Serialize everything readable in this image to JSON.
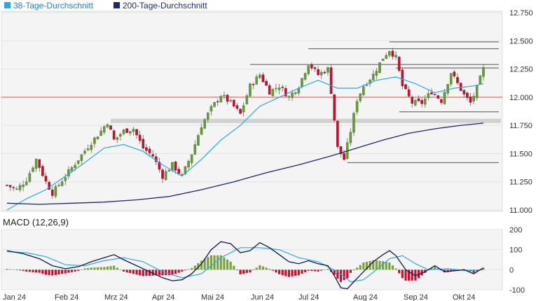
{
  "legend": {
    "sma38_label": "38-Tage-Durchschnitt",
    "sma200_label": "200-Tage-Durchschnitt"
  },
  "macd_title": "MACD (12,26,9)",
  "colors": {
    "sma38": "#29a9e0",
    "sma200": "#1a2a6c",
    "up": "#6a9a3a",
    "down": "#c8102e",
    "ref": "#d9534f",
    "level": "#555555",
    "macd_line": "#0d1b4c",
    "signal_line": "#29a9e0",
    "hist_pos": "#7aa33f",
    "hist_neg": "#c8102e"
  },
  "chart_data": [
    {
      "type": "candlestick",
      "title": "",
      "x_axis_labels": [
        "Jan 24",
        "Feb 24",
        "Mrz 24",
        "Apr 24",
        "Mai 24",
        "Jun 24",
        "Jul 24",
        "Aug 24",
        "Sep 24",
        "Okt 24"
      ],
      "y_ticks": [
        "12.750",
        "12.500",
        "12.250",
        "12.000",
        "11.750",
        "11.500",
        "11.250",
        "11.000"
      ],
      "ylim": [
        11.0,
        12.75
      ],
      "reference_line": 12.0,
      "support_resistance": [
        {
          "level": 12.49,
          "from": "Aug 24",
          "to": "Okt 24"
        },
        {
          "level": 12.43,
          "from": "Jul 24",
          "to": "Okt 24"
        },
        {
          "level": 12.29,
          "from": "Jun 24",
          "to": "Okt 24"
        },
        {
          "level": 12.26,
          "from": "Sep 24",
          "to": "Okt 24"
        },
        {
          "level": 11.87,
          "from": "Sep 24",
          "to": "Okt 24"
        },
        {
          "level": 11.79,
          "from": "Mrz 24",
          "to": "Okt 24",
          "band": true
        },
        {
          "level": 11.42,
          "from": "Aug 24",
          "to": "Okt 24"
        }
      ],
      "close_path": [
        [
          0,
          11.22
        ],
        [
          3,
          11.18
        ],
        [
          6,
          11.27
        ],
        [
          9,
          11.45
        ],
        [
          12,
          11.25
        ],
        [
          14,
          11.15
        ],
        [
          18,
          11.3
        ],
        [
          22,
          11.45
        ],
        [
          26,
          11.6
        ],
        [
          29,
          11.7
        ],
        [
          31,
          11.78
        ],
        [
          33,
          11.62
        ],
        [
          36,
          11.7
        ],
        [
          39,
          11.72
        ],
        [
          42,
          11.55
        ],
        [
          45,
          11.48
        ],
        [
          48,
          11.3
        ],
        [
          51,
          11.4
        ],
        [
          54,
          11.3
        ],
        [
          57,
          11.5
        ],
        [
          60,
          11.75
        ],
        [
          63,
          11.9
        ],
        [
          66,
          12.02
        ],
        [
          69,
          11.95
        ],
        [
          72,
          11.85
        ],
        [
          75,
          12.1
        ],
        [
          78,
          12.2
        ],
        [
          81,
          12.05
        ],
        [
          84,
          12.1
        ],
        [
          87,
          12.0
        ],
        [
          90,
          12.1
        ],
        [
          93,
          12.3
        ],
        [
          96,
          12.2
        ],
        [
          99,
          12.25
        ],
        [
          100,
          12.05
        ],
        [
          102,
          11.55
        ],
        [
          104,
          11.45
        ],
        [
          106,
          11.7
        ],
        [
          108,
          11.98
        ],
        [
          110,
          12.1
        ],
        [
          113,
          12.2
        ],
        [
          116,
          12.35
        ],
        [
          118,
          12.42
        ],
        [
          120,
          12.35
        ],
        [
          122,
          12.1
        ],
        [
          125,
          11.95
        ],
        [
          128,
          11.95
        ],
        [
          131,
          12.05
        ],
        [
          134,
          11.97
        ],
        [
          137,
          12.22
        ],
        [
          139,
          12.12
        ],
        [
          141,
          12.02
        ],
        [
          143,
          11.95
        ],
        [
          145,
          12.08
        ],
        [
          147,
          12.25
        ]
      ],
      "sma38_path": [
        [
          0,
          11.0
        ],
        [
          6,
          11.1
        ],
        [
          12,
          11.18
        ],
        [
          18,
          11.3
        ],
        [
          24,
          11.42
        ],
        [
          30,
          11.55
        ],
        [
          36,
          11.58
        ],
        [
          42,
          11.52
        ],
        [
          48,
          11.4
        ],
        [
          54,
          11.3
        ],
        [
          60,
          11.45
        ],
        [
          66,
          11.62
        ],
        [
          72,
          11.75
        ],
        [
          78,
          11.92
        ],
        [
          84,
          12.0
        ],
        [
          90,
          12.08
        ],
        [
          96,
          12.15
        ],
        [
          102,
          12.08
        ],
        [
          108,
          12.08
        ],
        [
          114,
          12.15
        ],
        [
          120,
          12.18
        ],
        [
          126,
          12.12
        ],
        [
          132,
          12.04
        ],
        [
          138,
          12.08
        ],
        [
          144,
          12.1
        ],
        [
          147,
          12.12
        ]
      ],
      "sma200_path": [
        [
          0,
          11.06
        ],
        [
          10,
          11.05
        ],
        [
          20,
          11.06
        ],
        [
          30,
          11.07
        ],
        [
          40,
          11.09
        ],
        [
          50,
          11.12
        ],
        [
          60,
          11.18
        ],
        [
          70,
          11.25
        ],
        [
          80,
          11.33
        ],
        [
          90,
          11.4
        ],
        [
          100,
          11.48
        ],
        [
          108,
          11.55
        ],
        [
          116,
          11.62
        ],
        [
          124,
          11.68
        ],
        [
          132,
          11.72
        ],
        [
          140,
          11.75
        ],
        [
          147,
          11.77
        ]
      ]
    },
    {
      "type": "macd",
      "title": "MACD (12,26,9)",
      "x_axis_labels": [
        "Jan 24",
        "Feb 24",
        "Mrz 24",
        "Apr 24",
        "Mai 24",
        "Jun 24",
        "Jul 24",
        "Aug 24",
        "Sep 24",
        "Okt 24"
      ],
      "y_ticks": [
        "200",
        "100",
        "0",
        "-100"
      ],
      "ylim": [
        -100,
        200
      ],
      "macd_path": [
        [
          0,
          95
        ],
        [
          5,
          80
        ],
        [
          10,
          55
        ],
        [
          14,
          20
        ],
        [
          18,
          5
        ],
        [
          22,
          15
        ],
        [
          26,
          40
        ],
        [
          30,
          60
        ],
        [
          33,
          75
        ],
        [
          36,
          50
        ],
        [
          40,
          20
        ],
        [
          44,
          -10
        ],
        [
          48,
          -40
        ],
        [
          51,
          -55
        ],
        [
          54,
          -50
        ],
        [
          57,
          -20
        ],
        [
          60,
          30
        ],
        [
          63,
          100
        ],
        [
          66,
          140
        ],
        [
          69,
          130
        ],
        [
          72,
          85
        ],
        [
          75,
          95
        ],
        [
          78,
          135
        ],
        [
          81,
          110
        ],
        [
          84,
          75
        ],
        [
          87,
          40
        ],
        [
          90,
          30
        ],
        [
          93,
          45
        ],
        [
          96,
          30
        ],
        [
          99,
          20
        ],
        [
          101,
          -30
        ],
        [
          103,
          -90
        ],
        [
          105,
          -95
        ],
        [
          107,
          -60
        ],
        [
          110,
          -10
        ],
        [
          113,
          40
        ],
        [
          116,
          75
        ],
        [
          118,
          95
        ],
        [
          120,
          70
        ],
        [
          123,
          0
        ],
        [
          126,
          -30
        ],
        [
          129,
          -10
        ],
        [
          132,
          20
        ],
        [
          135,
          -10
        ],
        [
          138,
          -5
        ],
        [
          141,
          0
        ],
        [
          144,
          -20
        ],
        [
          147,
          10
        ]
      ],
      "signal_path": [
        [
          0,
          90
        ],
        [
          6,
          85
        ],
        [
          12,
          65
        ],
        [
          18,
          25
        ],
        [
          24,
          20
        ],
        [
          30,
          45
        ],
        [
          36,
          60
        ],
        [
          42,
          40
        ],
        [
          48,
          -10
        ],
        [
          54,
          -40
        ],
        [
          60,
          -20
        ],
        [
          66,
          60
        ],
        [
          72,
          110
        ],
        [
          78,
          110
        ],
        [
          84,
          100
        ],
        [
          90,
          60
        ],
        [
          96,
          40
        ],
        [
          102,
          -10
        ],
        [
          106,
          -60
        ],
        [
          110,
          -50
        ],
        [
          114,
          0
        ],
        [
          118,
          55
        ],
        [
          122,
          70
        ],
        [
          126,
          30
        ],
        [
          130,
          0
        ],
        [
          136,
          5
        ],
        [
          142,
          -5
        ],
        [
          147,
          0
        ]
      ]
    }
  ]
}
